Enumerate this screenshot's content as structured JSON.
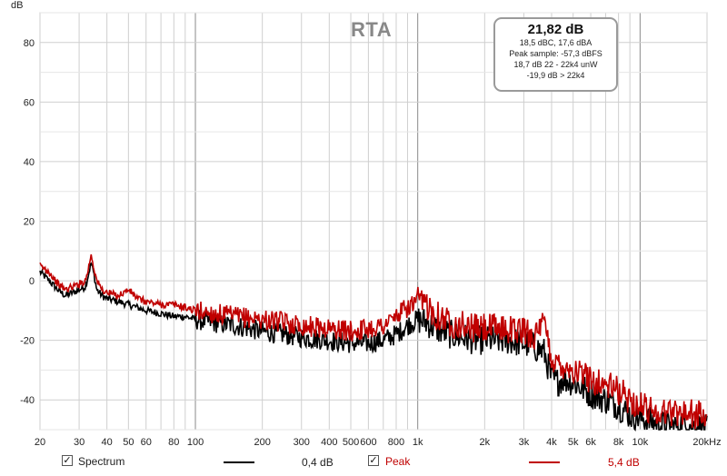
{
  "chart_data": {
    "type": "line",
    "title": "RTA",
    "ylabel": "dB",
    "xlabel": "",
    "x_scale": "log",
    "xlim": [
      20,
      20000
    ],
    "ylim": [
      -50,
      90
    ],
    "grid": true,
    "x_ticks": [
      {
        "v": 20,
        "l": "20"
      },
      {
        "v": 30,
        "l": "30"
      },
      {
        "v": 40,
        "l": "40"
      },
      {
        "v": 50,
        "l": "50"
      },
      {
        "v": 60,
        "l": "60"
      },
      {
        "v": 80,
        "l": "80"
      },
      {
        "v": 100,
        "l": "100"
      },
      {
        "v": 200,
        "l": "200"
      },
      {
        "v": 300,
        "l": "300"
      },
      {
        "v": 400,
        "l": "400"
      },
      {
        "v": 500,
        "l": "500"
      },
      {
        "v": 600,
        "l": "600"
      },
      {
        "v": 800,
        "l": "800"
      },
      {
        "v": 1000,
        "l": "1k"
      },
      {
        "v": 2000,
        "l": "2k"
      },
      {
        "v": 3000,
        "l": "3k"
      },
      {
        "v": 4000,
        "l": "4k"
      },
      {
        "v": 5000,
        "l": "5k"
      },
      {
        "v": 6000,
        "l": "6k"
      },
      {
        "v": 8000,
        "l": "8k"
      },
      {
        "v": 10000,
        "l": "10k"
      },
      {
        "v": 20000,
        "l": "20kHz"
      }
    ],
    "y_ticks": [
      {
        "v": 80,
        "l": "80"
      },
      {
        "v": 60,
        "l": "60"
      },
      {
        "v": 40,
        "l": "40"
      },
      {
        "v": 20,
        "l": "20"
      },
      {
        "v": 0,
        "l": "0"
      },
      {
        "v": -20,
        "l": "-20"
      },
      {
        "v": -40,
        "l": "-40"
      }
    ],
    "series": [
      {
        "name": "Spectrum",
        "color": "#000000",
        "offset": "0,4 dB",
        "x": [
          20,
          22,
          24,
          26,
          28,
          30,
          32,
          33,
          34,
          35,
          36,
          38,
          40,
          45,
          50,
          55,
          60,
          70,
          80,
          90,
          100,
          120,
          150,
          200,
          250,
          300,
          400,
          500,
          600,
          700,
          800,
          900,
          1000,
          1100,
          1200,
          1400,
          1600,
          1800,
          2000,
          2500,
          3000,
          3300,
          3500,
          3700,
          4000,
          4200,
          4500,
          5000,
          6000,
          7000,
          8000,
          9000,
          10000,
          11000,
          12000,
          14000,
          16000,
          18000,
          20000
        ],
        "y": [
          3,
          0,
          -3,
          -5,
          -4,
          -3,
          -2,
          2,
          6,
          2,
          -3,
          -5,
          -6,
          -7,
          -8,
          -9,
          -10,
          -11,
          -12,
          -12,
          -13,
          -14,
          -15,
          -17,
          -18,
          -19,
          -20,
          -21,
          -21,
          -20,
          -18,
          -15,
          -13,
          -14,
          -16,
          -18,
          -19,
          -20,
          -20,
          -20,
          -21,
          -22,
          -23,
          -24,
          -33,
          -34,
          -33,
          -34,
          -38,
          -40,
          -42,
          -45,
          -46,
          -47,
          -48,
          -49,
          -48,
          -49,
          -50
        ]
      },
      {
        "name": "Peak",
        "color": "#c00000",
        "offset": "5,4 dB",
        "x": [
          20,
          22,
          24,
          26,
          28,
          30,
          32,
          33,
          34,
          35,
          36,
          38,
          40,
          45,
          50,
          55,
          60,
          70,
          80,
          90,
          100,
          120,
          150,
          200,
          250,
          300,
          400,
          500,
          600,
          700,
          800,
          900,
          1000,
          1100,
          1200,
          1400,
          1600,
          1800,
          2000,
          2500,
          3000,
          3300,
          3500,
          3700,
          4000,
          4200,
          4500,
          5000,
          6000,
          7000,
          8000,
          9000,
          10000,
          11000,
          12000,
          14000,
          16000,
          18000,
          20000
        ],
        "y": [
          5,
          3,
          -1,
          -3,
          -2,
          -1,
          0,
          4,
          9,
          4,
          0,
          -3,
          -4,
          -5,
          -3,
          -6,
          -7,
          -8,
          -8,
          -9,
          -10,
          -11,
          -12,
          -13,
          -14,
          -15,
          -16,
          -17,
          -16,
          -15,
          -12,
          -9,
          -7,
          -8,
          -11,
          -14,
          -15,
          -16,
          -16,
          -16,
          -17,
          -18,
          -18,
          -14,
          -26,
          -28,
          -28,
          -30,
          -33,
          -35,
          -37,
          -40,
          -42,
          -43,
          -44,
          -44,
          -44,
          -45,
          -46
        ]
      }
    ]
  },
  "infobox": {
    "main": "21,82 dB",
    "line1": "18,5 dBC, 17,6 dBA",
    "line2": "Peak sample: -57,3 dBFS",
    "line3": "18,7 dB 22 - 22k4 unW",
    "line4": "-19,9 dB > 22k4"
  },
  "legend": {
    "spectrum_checked": "✓",
    "spectrum_label": "Spectrum",
    "spectrum_offset": "0,4 dB",
    "peak_checked": "✓",
    "peak_label": "Peak",
    "peak_offset": "5,4 dB",
    "spectrum_color": "#000000",
    "peak_color": "#c00000"
  }
}
